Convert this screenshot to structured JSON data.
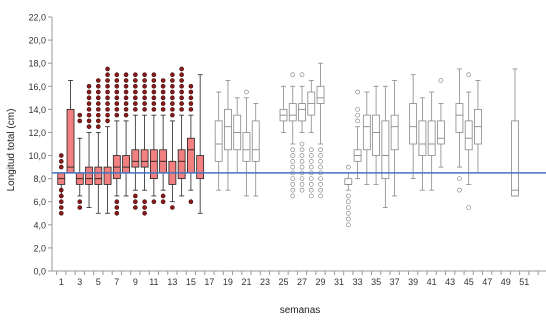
{
  "chart_data": {
    "type": "box",
    "title": "",
    "xlabel": "semanas",
    "ylabel": "Longitud total (cm)",
    "ylim": [
      0,
      22
    ],
    "yticks": [
      "0,0",
      "2,0",
      "4,0",
      "6,0",
      "8,0",
      "10,0",
      "12,0",
      "14,0",
      "16,0",
      "18,0",
      "20,0",
      "22,0"
    ],
    "xlim": [
      0,
      52
    ],
    "xticks": [
      "1",
      "3",
      "5",
      "7",
      "9",
      "11",
      "13",
      "15",
      "17",
      "19",
      "21",
      "23",
      "25",
      "27",
      "29",
      "31",
      "33",
      "35",
      "37",
      "39",
      "41",
      "43",
      "45",
      "47",
      "49",
      "51"
    ],
    "reference_line": {
      "y": 8.5,
      "color": "#4472c4"
    },
    "grid": false,
    "colors": {
      "filled_box": "#f28080",
      "empty_box": "#ffffff",
      "box_border_filled": "#222222",
      "box_border_empty": "#888888",
      "outlier_filled": "#8b1a1a",
      "axis": "#999999",
      "tick_label": "#333333"
    },
    "boxes": [
      {
        "week": 1,
        "q1": 7.5,
        "median": 8.0,
        "q3": 8.5,
        "low": 6.5,
        "high": 8.5,
        "filled": true,
        "outliers": [
          5,
          5.5,
          6,
          6.5,
          7,
          9,
          9.5,
          10
        ]
      },
      {
        "week": 2,
        "q1": 8.5,
        "median": 9.0,
        "q3": 14.0,
        "low": 8.5,
        "high": 16.5,
        "filled": true,
        "outliers": []
      },
      {
        "week": 3,
        "q1": 7.5,
        "median": 8.0,
        "q3": 8.5,
        "low": 6.5,
        "high": 11.5,
        "filled": true,
        "outliers": [
          5.5,
          6,
          13,
          13.5
        ]
      },
      {
        "week": 4,
        "q1": 7.5,
        "median": 8.0,
        "q3": 9.0,
        "low": 5.5,
        "high": 12,
        "filled": true,
        "outliers": [
          12.5,
          13,
          13.5,
          14,
          14.5,
          15,
          15.5,
          16
        ]
      },
      {
        "week": 5,
        "q1": 7.5,
        "median": 8.0,
        "q3": 9.0,
        "low": 5,
        "high": 12,
        "filled": true,
        "outliers": [
          12.5,
          13,
          13.5,
          14,
          14.5,
          15,
          15.5,
          16,
          16.5
        ]
      },
      {
        "week": 6,
        "q1": 7.5,
        "median": 8.5,
        "q3": 9.0,
        "low": 5,
        "high": 12.5,
        "filled": true,
        "outliers": [
          13,
          13.5,
          14,
          14.5,
          15,
          15.5,
          16,
          16.5,
          17,
          17.5
        ]
      },
      {
        "week": 7,
        "q1": 8.0,
        "median": 9.0,
        "q3": 10.0,
        "low": 6.5,
        "high": 13,
        "filled": true,
        "outliers": [
          5,
          5.5,
          6,
          13.5,
          14,
          14.5,
          15,
          15.5,
          16,
          16.5,
          17
        ]
      },
      {
        "week": 8,
        "q1": 8.5,
        "median": 9.0,
        "q3": 10.0,
        "low": 6.5,
        "high": 13,
        "filled": true,
        "outliers": [
          13.5,
          14,
          14.5,
          15,
          15.5,
          16,
          16.5,
          17
        ]
      },
      {
        "week": 9,
        "q1": 9.0,
        "median": 9.5,
        "q3": 10.5,
        "low": 7,
        "high": 13.5,
        "filled": true,
        "outliers": [
          5.5,
          6,
          6.5,
          14,
          14.5,
          15,
          15.5,
          16,
          16.5,
          17
        ]
      },
      {
        "week": 10,
        "q1": 9.0,
        "median": 9.5,
        "q3": 10.5,
        "low": 7,
        "high": 13.5,
        "filled": true,
        "outliers": [
          5,
          5.5,
          6,
          14,
          14.5,
          15,
          15.5,
          16,
          16.5,
          17
        ]
      },
      {
        "week": 11,
        "q1": 8.0,
        "median": 9.5,
        "q3": 10.5,
        "low": 6.5,
        "high": 13.5,
        "filled": true,
        "outliers": [
          6,
          14,
          14.5,
          15,
          15.5,
          16,
          16.5,
          17
        ]
      },
      {
        "week": 12,
        "q1": 8.5,
        "median": 9.5,
        "q3": 10.5,
        "low": 7,
        "high": 13.5,
        "filled": true,
        "outliers": [
          6,
          6.5,
          14,
          14.5,
          15,
          15.5,
          16,
          16.5
        ]
      },
      {
        "week": 13,
        "q1": 7.5,
        "median": 8.5,
        "q3": 9.5,
        "low": 6,
        "high": 13,
        "filled": true,
        "outliers": [
          5.5,
          13.5,
          14,
          14.5,
          15,
          15.5,
          16,
          16.5,
          17
        ]
      },
      {
        "week": 14,
        "q1": 8.0,
        "median": 9.5,
        "q3": 10.5,
        "low": 6.5,
        "high": 13.5,
        "filled": true,
        "outliers": [
          14,
          14.5,
          15,
          15.5,
          16,
          16.5,
          17,
          17.5
        ]
      },
      {
        "week": 15,
        "q1": 8.5,
        "median": 10.5,
        "q3": 11.5,
        "low": 7,
        "high": 13.5,
        "filled": true,
        "outliers": [
          6,
          14,
          14.5,
          15,
          15.5,
          16
        ]
      },
      {
        "week": 16,
        "q1": 8.0,
        "median": 8.5,
        "q3": 10.0,
        "low": 5,
        "high": 17,
        "filled": true,
        "outliers": []
      },
      {
        "week": 18,
        "q1": 9.5,
        "median": 11.0,
        "q3": 13.0,
        "low": 7,
        "high": 15.5,
        "filled": false,
        "outliers": []
      },
      {
        "week": 19,
        "q1": 10.5,
        "median": 12.5,
        "q3": 14.0,
        "low": 7,
        "high": 16.5,
        "filled": false,
        "outliers": []
      },
      {
        "week": 20,
        "q1": 10.5,
        "median": 12.0,
        "q3": 13.5,
        "low": 8.5,
        "high": 15,
        "filled": false,
        "outliers": []
      },
      {
        "week": 21,
        "q1": 9.5,
        "median": 10.5,
        "q3": 12.0,
        "low": 6.5,
        "high": 15,
        "filled": false,
        "outliers": [
          15.5
        ]
      },
      {
        "week": 22,
        "q1": 9.5,
        "median": 10.5,
        "q3": 13.0,
        "low": 6.5,
        "high": 14.5,
        "filled": false,
        "outliers": []
      },
      {
        "week": 25,
        "q1": 13.0,
        "median": 13.5,
        "q3": 14.0,
        "low": 12,
        "high": 16,
        "filled": false,
        "outliers": []
      },
      {
        "week": 26,
        "q1": 13.0,
        "median": 13.5,
        "q3": 14.5,
        "low": 11,
        "high": 16,
        "filled": false,
        "outliers": [
          6.5,
          7,
          7.5,
          8,
          8.5,
          9,
          9.5,
          10,
          10.5,
          17
        ]
      },
      {
        "week": 27,
        "q1": 13.0,
        "median": 14.0,
        "q3": 14.5,
        "low": 12,
        "high": 16,
        "filled": false,
        "outliers": [
          7,
          7.5,
          8,
          8.5,
          9,
          9.5,
          10,
          10.5,
          11,
          17
        ]
      },
      {
        "week": 28,
        "q1": 13.5,
        "median": 14.5,
        "q3": 15.5,
        "low": 12,
        "high": 16.5,
        "filled": false,
        "outliers": [
          6.5,
          7,
          7.5,
          8,
          8.5,
          9,
          9.5,
          10,
          10.5
        ]
      },
      {
        "week": 29,
        "q1": 14.5,
        "median": 15.0,
        "q3": 16.0,
        "low": 11,
        "high": 18,
        "filled": false,
        "outliers": [
          6.5,
          7,
          7.5,
          8,
          8.5,
          9,
          9.5,
          10,
          10.5
        ]
      },
      {
        "week": 32,
        "q1": 7.5,
        "median": 7.5,
        "q3": 8.0,
        "low": 7,
        "high": 8.5,
        "filled": false,
        "outliers": [
          4,
          4.5,
          5,
          5.5,
          6,
          6.5,
          9
        ]
      },
      {
        "week": 33,
        "q1": 9.5,
        "median": 10.0,
        "q3": 10.5,
        "low": 8,
        "high": 12.5,
        "filled": false,
        "outliers": [
          13,
          13.5,
          14,
          15.5
        ]
      },
      {
        "week": 34,
        "q1": 10.5,
        "median": 12.5,
        "q3": 13.5,
        "low": 7.5,
        "high": 15.5,
        "filled": false,
        "outliers": []
      },
      {
        "week": 35,
        "q1": 10.0,
        "median": 12.0,
        "q3": 13.5,
        "low": 7.5,
        "high": 16,
        "filled": false,
        "outliers": []
      },
      {
        "week": 36,
        "q1": 8.0,
        "median": 10.0,
        "q3": 13.0,
        "low": 5.5,
        "high": 16,
        "filled": false,
        "outliers": []
      },
      {
        "week": 37,
        "q1": 10.5,
        "median": 12.5,
        "q3": 13.5,
        "low": 6.5,
        "high": 16.5,
        "filled": false,
        "outliers": []
      },
      {
        "week": 39,
        "q1": 11.0,
        "median": 12.5,
        "q3": 14.5,
        "low": 8,
        "high": 17,
        "filled": false,
        "outliers": []
      },
      {
        "week": 40,
        "q1": 10.0,
        "median": 11.0,
        "q3": 13.0,
        "low": 7,
        "high": 15,
        "filled": false,
        "outliers": []
      },
      {
        "week": 41,
        "q1": 10.0,
        "median": 11.0,
        "q3": 13.0,
        "low": 7,
        "high": 15.5,
        "filled": false,
        "outliers": []
      },
      {
        "week": 42,
        "q1": 11.0,
        "median": 11.5,
        "q3": 13.0,
        "low": 9,
        "high": 14.5,
        "filled": false,
        "outliers": [
          16.5
        ]
      },
      {
        "week": 44,
        "q1": 12.0,
        "median": 13.5,
        "q3": 14.5,
        "low": 9,
        "high": 17.5,
        "filled": false,
        "outliers": [
          7,
          8
        ]
      },
      {
        "week": 45,
        "q1": 10.5,
        "median": 11.5,
        "q3": 13.0,
        "low": 7.5,
        "high": 15.5,
        "filled": false,
        "outliers": [
          5.5,
          17
        ]
      },
      {
        "week": 46,
        "q1": 11.0,
        "median": 12.5,
        "q3": 14.0,
        "low": 8.5,
        "high": 16.5,
        "filled": false,
        "outliers": []
      },
      {
        "week": 50,
        "q1": 6.5,
        "median": 7.0,
        "q3": 13.0,
        "low": 6.5,
        "high": 17.5,
        "filled": false,
        "outliers": []
      }
    ]
  }
}
